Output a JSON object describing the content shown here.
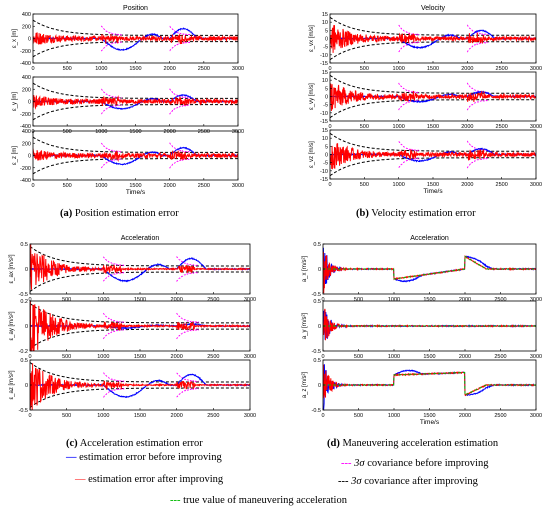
{
  "colors": {
    "before": "#0000ff",
    "after": "#ff0000",
    "cov_before": "#ff00ff",
    "cov_after": "#000000",
    "true_value": "#00bb00",
    "axis": "#000000"
  },
  "captions": {
    "a": "Position estimation error",
    "b": "Velocity estimation error",
    "c": "Acceleration estimation error",
    "d": "Maneuvering acceleration estimation",
    "a_letter": "(a)",
    "b_letter": "(b)",
    "c_letter": "(c)",
    "d_letter": "(d)"
  },
  "legend": {
    "item1_marker": "—",
    "item1_text": "estimation error before improving",
    "item2_marker": "—",
    "item2_text": "estimation error after improving",
    "item3_marker": "---",
    "item3_sym": "3σ",
    "item3_text": "covariance before improving",
    "item4_marker": "---",
    "item4_sym": "3σ",
    "item4_text": "covariance after improving",
    "item5_marker": "---",
    "item5_text": "true value of maneuvering acceleration"
  },
  "chart_data": [
    {
      "id": "a",
      "type": "line",
      "title": "Position",
      "xlabel": "Time/s",
      "x_ticks": [
        0,
        500,
        1000,
        1500,
        2000,
        2500,
        3000
      ],
      "xlim": [
        0,
        3000
      ],
      "panels": [
        {
          "ylabel": "ε_x [m]",
          "ylim": [
            -400,
            400
          ],
          "y_ticks": [
            -400,
            -200,
            0,
            200,
            400
          ],
          "y_tick_labels": [
            "-400",
            "-200",
            "0",
            "200",
            "400"
          ],
          "env": [
            300,
            50
          ],
          "err": 100,
          "red_err": 60,
          "blue": "pos",
          "mag": 230
        },
        {
          "ylabel": "ε_y [m]",
          "ylim": [
            -400,
            400
          ],
          "y_ticks": [
            -400,
            -200,
            0,
            200,
            400
          ],
          "y_tick_labels": [
            "-400",
            "-200",
            "0",
            "200",
            "400"
          ],
          "env": [
            300,
            50
          ],
          "err": 80,
          "red_err": 60,
          "blue": "pos",
          "mag": 150
        },
        {
          "ylabel": "ε_z [m]",
          "ylim": [
            -400,
            400
          ],
          "y_ticks": [
            -400,
            -200,
            0,
            200,
            400
          ],
          "y_tick_labels": [
            "-400",
            "-200",
            "0",
            "200",
            "400"
          ],
          "env": [
            300,
            50
          ],
          "err": 80,
          "red_err": 60,
          "blue": "pos",
          "mag": 180
        }
      ]
    },
    {
      "id": "b",
      "type": "line",
      "title": "Velocity",
      "xlabel": "Time/s",
      "x_ticks": [
        0,
        500,
        1000,
        1500,
        2000,
        2500,
        3000
      ],
      "xlim": [
        0,
        3000
      ],
      "panels": [
        {
          "ylabel": "ε_vx [m/s]",
          "ylim": [
            -15,
            15
          ],
          "y_ticks": [
            -15,
            -10,
            -5,
            0,
            5,
            10,
            15
          ],
          "y_tick_labels": [
            "-15",
            "-10",
            "-5",
            "0",
            "5",
            "10",
            "15"
          ],
          "env": [
            13,
            2
          ],
          "err": 10,
          "red_err": 2,
          "blue": "vel",
          "mag": 7
        },
        {
          "ylabel": "ε_vy [m/s]",
          "ylim": [
            -15,
            15
          ],
          "y_ticks": [
            -15,
            -10,
            -5,
            0,
            5,
            10,
            15
          ],
          "y_tick_labels": [
            "-15",
            "-10",
            "-5",
            "0",
            "5",
            "10",
            "15"
          ],
          "env": [
            13,
            2
          ],
          "err": 10,
          "red_err": 2,
          "blue": "vel",
          "mag": 4
        },
        {
          "ylabel": "ε_vz [m/s]",
          "ylim": [
            -15,
            15
          ],
          "y_ticks": [
            -15,
            -10,
            -5,
            0,
            5,
            10,
            15
          ],
          "y_tick_labels": [
            "-15",
            "-10",
            "-5",
            "0",
            "5",
            "10",
            "15"
          ],
          "env": [
            13,
            2
          ],
          "err": 10,
          "red_err": 2,
          "blue": "vel",
          "mag": 5
        }
      ]
    },
    {
      "id": "c",
      "type": "line",
      "title": "Acceleration",
      "xlabel": "",
      "x_ticks": [
        0,
        500,
        1000,
        1500,
        2000,
        2500,
        3000
      ],
      "xlim": [
        0,
        3000
      ],
      "panels": [
        {
          "ylabel": "ε_ax [m/s²]",
          "ylim": [
            -0.5,
            0.5
          ],
          "y_ticks": [
            -0.5,
            0,
            0.5
          ],
          "y_tick_labels": [
            "-0.5",
            "0",
            "0.5"
          ],
          "env": [
            0.45,
            0.06
          ],
          "err": 0.6,
          "red_err": 0.02,
          "blue": "acc",
          "mag": 0.3
        },
        {
          "ylabel": "ε_ay [m/s²]",
          "ylim": [
            -0.2,
            0.2
          ],
          "y_ticks": [
            -0.2,
            0,
            0.2
          ],
          "y_tick_labels": [
            "-0.2",
            "0",
            "0.2"
          ],
          "env": [
            0.18,
            0.025
          ],
          "err": 0.3,
          "red_err": 0.01,
          "blue": "accy",
          "mag": 0.02
        },
        {
          "ylabel": "ε_az [m/s²]",
          "ylim": [
            -0.5,
            0.5
          ],
          "y_ticks": [
            -0.5,
            0,
            0.5
          ],
          "y_tick_labels": [
            "-0.5",
            "0",
            "0.5"
          ],
          "env": [
            0.45,
            0.06
          ],
          "err": 0.6,
          "red_err": 0.02,
          "blue": "acc",
          "mag": 0.3
        }
      ]
    },
    {
      "id": "d",
      "type": "line",
      "title": "Acceleration",
      "xlabel": "Time/s",
      "x_ticks": [
        0,
        500,
        1000,
        1500,
        2000,
        2500,
        3000
      ],
      "xlim": [
        0,
        3000
      ],
      "panels": [
        {
          "ylabel": "a_x [m/s²]",
          "ylim": [
            -0.5,
            0.5
          ],
          "y_ticks": [
            -0.5,
            0,
            0.5
          ],
          "y_tick_labels": [
            "-0.5",
            "0",
            "0.5"
          ],
          "err": 0.55,
          "truth": "x"
        },
        {
          "ylabel": "a_y [m/s²]",
          "ylim": [
            -0.5,
            0.5
          ],
          "y_ticks": [
            -0.5,
            0,
            0.5
          ],
          "y_tick_labels": [
            "-0.5",
            "0",
            "0.5"
          ],
          "err": 0.55,
          "truth": "y"
        },
        {
          "ylabel": "a_z [m/s²]",
          "ylim": [
            -0.5,
            0.5
          ],
          "y_ticks": [
            -0.5,
            0,
            0.5
          ],
          "y_tick_labels": [
            "-0.5",
            "0",
            "0.5"
          ],
          "err": 0.55,
          "truth": "z"
        }
      ]
    }
  ]
}
